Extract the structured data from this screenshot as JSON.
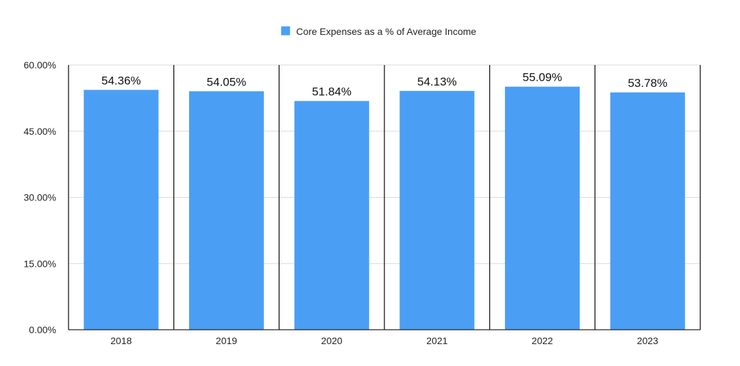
{
  "chart_data": {
    "type": "bar",
    "categories": [
      "2018",
      "2019",
      "2020",
      "2021",
      "2022",
      "2023"
    ],
    "series": [
      {
        "name": "Core Expenses as a % of Average Income",
        "values": [
          54.36,
          54.05,
          51.84,
          54.13,
          55.09,
          53.78
        ],
        "labels": [
          "54.36%",
          "54.05%",
          "51.84%",
          "54.13%",
          "55.09%",
          "53.78%"
        ],
        "color": "#4a9ff5"
      }
    ],
    "title": "",
    "xlabel": "",
    "ylabel": "",
    "ylim": [
      0,
      60
    ],
    "yticks": [
      0,
      15,
      30,
      45,
      60
    ],
    "ytick_labels": [
      "0.00%",
      "15.00%",
      "30.00%",
      "45.00%",
      "60.00%"
    ],
    "grid": true,
    "legend_position": "top-center",
    "colors": {
      "bar": "#4a9ff5",
      "grid": "#d9d9d9",
      "separator": "#000000",
      "axis": "#222222"
    }
  }
}
